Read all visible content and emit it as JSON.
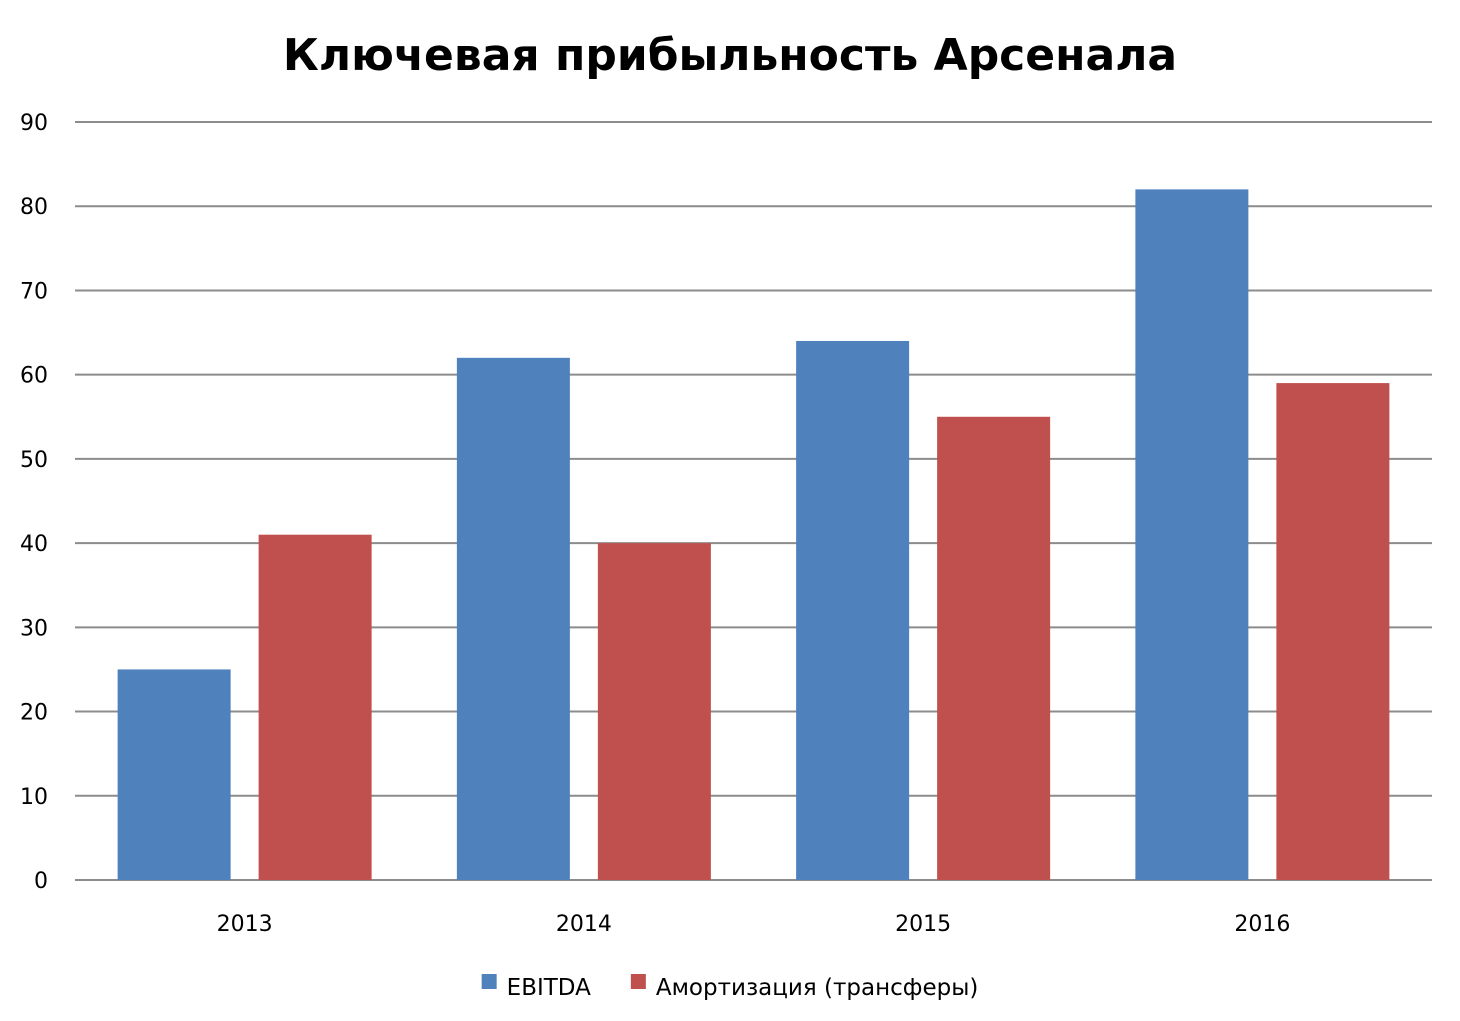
{
  "chart_data": {
    "type": "bar",
    "title": "Ключевая прибыльность Арсенала",
    "xlabel": "",
    "ylabel": "",
    "categories": [
      "2013",
      "2014",
      "2015",
      "2016"
    ],
    "series": [
      {
        "name": "EBITDA",
        "color": "#4f81bd",
        "values": [
          25,
          62,
          64,
          82
        ]
      },
      {
        "name": "Амортизация (трансферы)",
        "color": "#c0504d",
        "values": [
          41,
          40,
          55,
          59
        ]
      }
    ],
    "ylim": [
      0,
      90
    ],
    "yticks": [
      0,
      10,
      20,
      30,
      40,
      50,
      60,
      70,
      80,
      90
    ],
    "grid": true,
    "legend_position": "bottom"
  }
}
